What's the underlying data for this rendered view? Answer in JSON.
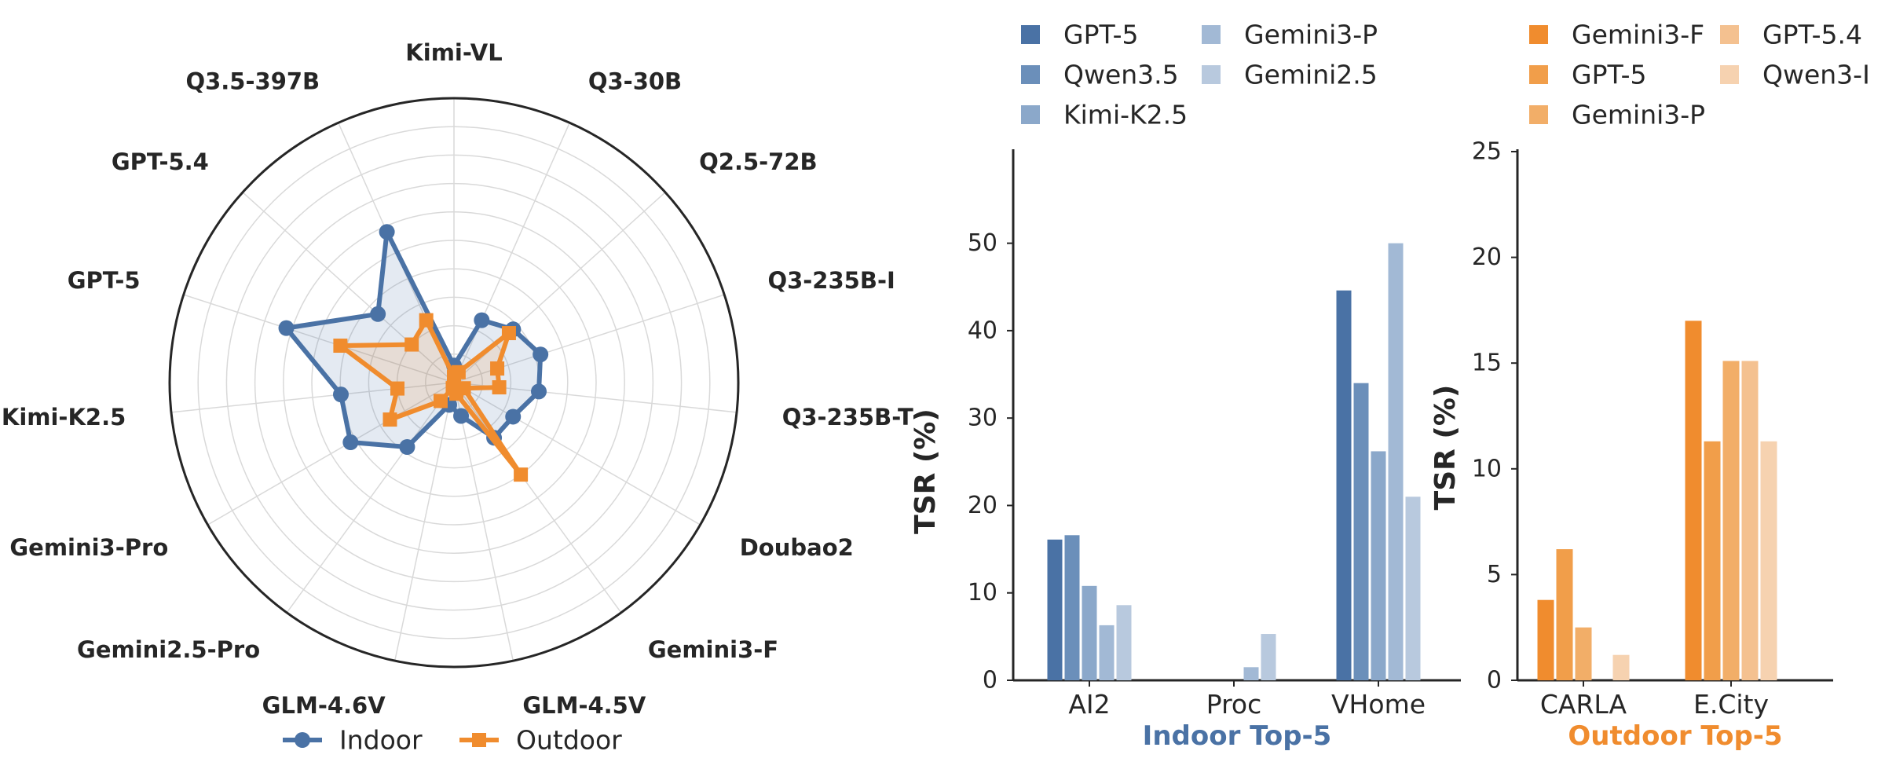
{
  "chart_data": [
    {
      "type": "radar",
      "spokes": [
        "Kimi-VL",
        "Q3-30B",
        "Q2.5-72B",
        "Q3-235B-I",
        "Q3-235B-T",
        "Doubao2",
        "Gemini3-F",
        "GLM-4.5V",
        "GLM-4.6V",
        "Gemini2.5-Pro",
        "Gemini3-Pro",
        "Kimi-K2.5",
        "GPT-5",
        "GPT-5.4",
        "Q3.5-397B"
      ],
      "rmax": 50,
      "rings": 9,
      "series": [
        {
          "name": "Indoor",
          "color": "#4a72a5",
          "marker": "circle",
          "values": [
            3,
            12,
            14,
            16,
            15,
            12,
            12,
            6,
            4,
            14,
            21,
            20,
            31,
            18,
            29
          ]
        },
        {
          "name": "Outdoor",
          "color": "#f08c2e",
          "marker": "square",
          "values": [
            1,
            2,
            13,
            8,
            8,
            2,
            20,
            2,
            1,
            4,
            13,
            10,
            21,
            10,
            12
          ]
        }
      ],
      "legend": {
        "placement": "bottom-center",
        "labels": [
          "Indoor",
          "Outdoor"
        ]
      }
    },
    {
      "type": "bar",
      "categories": [
        "AI2",
        "Proc",
        "VHome"
      ],
      "series": [
        {
          "name": "GPT-5",
          "color": "#4a72a5",
          "values": [
            16.1,
            0,
            44.6
          ]
        },
        {
          "name": "Qwen3.5",
          "color": "#6b8fba",
          "values": [
            16.6,
            0,
            34.0
          ]
        },
        {
          "name": "Kimi-K2.5",
          "color": "#8ba8ca",
          "values": [
            10.8,
            0,
            26.2
          ]
        },
        {
          "name": "Gemini3-P",
          "color": "#a2b9d5",
          "values": [
            6.3,
            1.5,
            50.0
          ]
        },
        {
          "name": "Gemini2.5",
          "color": "#b8c9de",
          "values": [
            8.6,
            5.3,
            21.0
          ]
        }
      ],
      "ylabel": "TSR (%)",
      "xlabel": "Indoor Top-5",
      "ylim": [
        0,
        55
      ],
      "yticks": [
        0,
        10,
        20,
        30,
        40,
        50
      ],
      "legend": "top"
    },
    {
      "type": "bar",
      "categories": [
        "CARLA",
        "E.City"
      ],
      "series": [
        {
          "name": "Gemini3-F",
          "color": "#f08c2e",
          "values": [
            3.8,
            17.0
          ]
        },
        {
          "name": "GPT-5",
          "color": "#f19e4a",
          "values": [
            6.2,
            11.3
          ]
        },
        {
          "name": "Gemini3-P",
          "color": "#f2ae68",
          "values": [
            2.5,
            15.1
          ]
        },
        {
          "name": "GPT-5.4",
          "color": "#f4c190",
          "values": [
            0,
            15.1
          ]
        },
        {
          "name": "Qwen3-I",
          "color": "#f6d2b0",
          "values": [
            1.2,
            11.3
          ]
        }
      ],
      "ylabel": "TSR (%)",
      "xlabel": "Outdoor Top-5",
      "ylim": [
        0,
        25
      ],
      "yticks": [
        0,
        5,
        10,
        15,
        20,
        25
      ],
      "legend": "top"
    }
  ]
}
